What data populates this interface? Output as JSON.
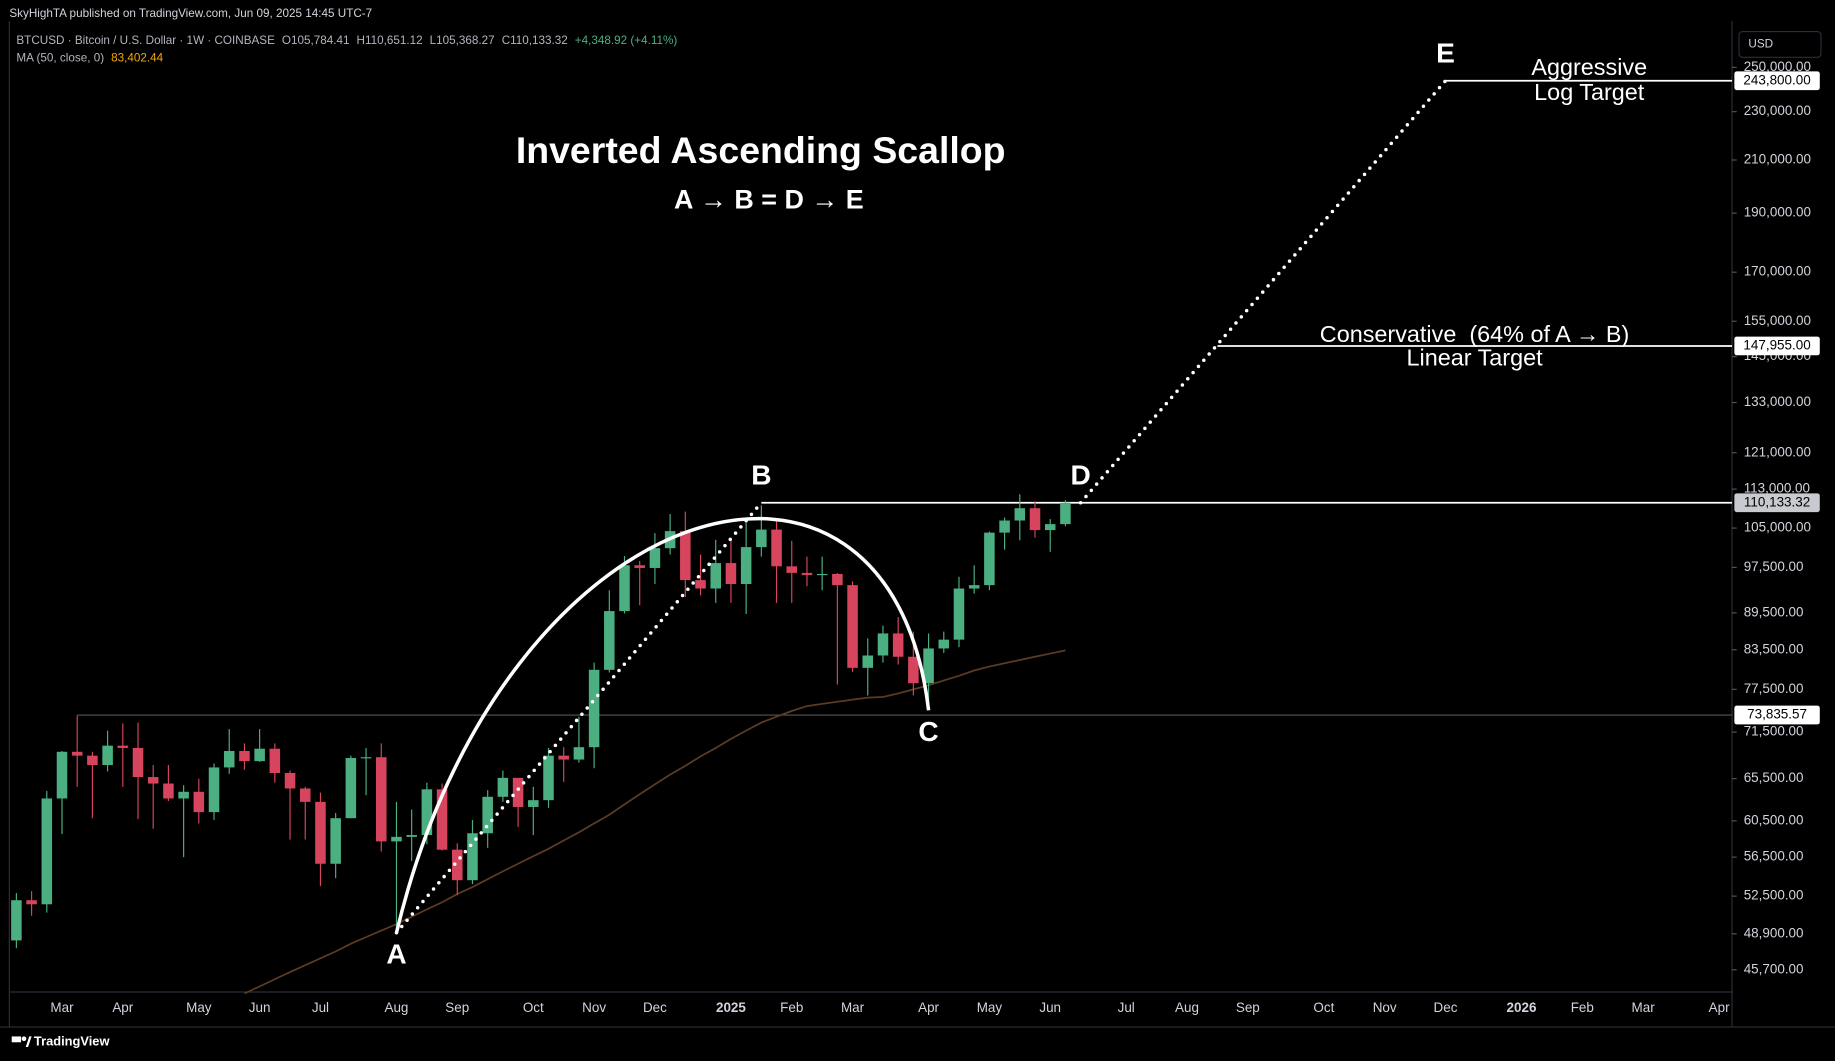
{
  "header": {
    "publisher": "SkyHighTA published on TradingView.com, Jun 09, 2025 14:45 UTC-7",
    "symbol": "BTCUSD · Bitcoin / U.S. Dollar · 1W · COINBASE",
    "open": "O105,784.41",
    "high": "H110,651.12",
    "low": "L105,368.27",
    "close": "C110,133.32",
    "change": "+4,348.92 (+4.11%)",
    "indicator": "MA (50, close, 0)",
    "indicator_value": "83,402.44"
  },
  "currency": "USD",
  "footer": "TradingView",
  "chart_data": {
    "type": "candlestick",
    "title": "Inverted Ascending Scallop",
    "subtitle": "A → B = D → E",
    "categories": [
      null,
      null,
      null,
      "Mar",
      null,
      null,
      null,
      "Apr",
      null,
      null,
      null,
      null,
      "May",
      null,
      null,
      null,
      "Jun",
      null,
      null,
      null,
      "Jul",
      null,
      null,
      null,
      null,
      "Aug",
      null,
      null,
      null,
      "Sep",
      null,
      null,
      null,
      null,
      "Oct",
      null,
      null,
      null,
      "Nov",
      null,
      null,
      null,
      "Dec",
      null,
      null,
      null,
      null,
      "2025",
      null,
      null,
      null,
      "Feb",
      null,
      null,
      null,
      "Mar",
      null,
      null,
      null,
      null,
      "Apr",
      null,
      null,
      null,
      "May",
      null,
      null,
      null,
      "Jun",
      null,
      null,
      null,
      null,
      "Jul",
      null,
      null,
      null,
      "Aug",
      null,
      null,
      null,
      "Sep",
      null,
      null,
      null,
      null,
      "Oct",
      null,
      null,
      null,
      "Nov",
      null,
      null,
      null,
      "Dec",
      null,
      null,
      null,
      null,
      "2026",
      null,
      null,
      null,
      "Feb",
      null,
      null,
      null,
      "Mar",
      null,
      null,
      null,
      null,
      "Apr"
    ],
    "open": [
      48300,
      52100,
      51700,
      63100,
      68900,
      68400,
      67200,
      69700,
      69400,
      65700,
      64900,
      63100,
      63900,
      61500,
      66900,
      69000,
      67700,
      69300,
      66200,
      64300,
      62700,
      55800,
      60800,
      68100,
      68200,
      58200,
      58700,
      58900,
      64200,
      57300,
      54100,
      59100,
      63300,
      65600,
      62100,
      62900,
      68400,
      67900,
      69500,
      80400,
      89800,
      97900,
      97400,
      101100,
      104400,
      95200,
      93700,
      98300,
      94500,
      101300,
      104700,
      97700,
      96500,
      96100,
      96300,
      94300,
      80700,
      82600,
      86100,
      82400,
      78400,
      83700,
      85100,
      93700,
      94300,
      104100,
      106500,
      109000,
      104600,
      105784.41,
      null,
      null,
      null,
      null,
      null,
      null,
      null,
      null,
      null,
      null,
      null,
      null,
      null,
      null,
      null,
      null,
      null,
      null,
      null,
      null,
      null,
      null,
      null,
      null,
      null,
      null,
      null,
      null,
      null,
      null,
      null,
      null,
      null,
      null,
      null,
      null,
      null,
      null,
      null,
      null,
      null,
      null,
      null
    ],
    "high": [
      52800,
      53000,
      64000,
      69000,
      73800,
      68900,
      71700,
      72700,
      72800,
      67200,
      67200,
      64700,
      65500,
      67400,
      71900,
      70000,
      71900,
      70000,
      66500,
      64500,
      63800,
      61400,
      68400,
      69400,
      70000,
      62700,
      61800,
      65000,
      64900,
      58000,
      60600,
      64100,
      66500,
      64900,
      64500,
      69400,
      69500,
      73600,
      81500,
      93400,
      99600,
      98700,
      104000,
      107800,
      108300,
      99900,
      102700,
      102500,
      106400,
      109600,
      106500,
      102500,
      99500,
      99500,
      96500,
      95000,
      85300,
      87400,
      88800,
      86400,
      86100,
      86400,
      95800,
      97900,
      104300,
      107100,
      111900,
      110400,
      106800,
      110651.12,
      null,
      null,
      null,
      null,
      null,
      null,
      null,
      null,
      null,
      null,
      null,
      null,
      null,
      null,
      null,
      null,
      null,
      null,
      null,
      null,
      null,
      null,
      null,
      null,
      null,
      null,
      null,
      null,
      null,
      null,
      null,
      null,
      null,
      null,
      null,
      null,
      null,
      null,
      null,
      null,
      null,
      null,
      null
    ],
    "low": [
      47600,
      50600,
      50900,
      59000,
      64500,
      60800,
      66400,
      64500,
      60700,
      59600,
      62800,
      56500,
      60200,
      60600,
      66100,
      66600,
      67600,
      65000,
      58400,
      58400,
      53500,
      54300,
      60800,
      63500,
      57100,
      49000,
      56100,
      57900,
      57200,
      52600,
      53700,
      57500,
      62700,
      59800,
      58900,
      62000,
      65100,
      67500,
      66800,
      80000,
      89400,
      90800,
      94500,
      99900,
      92200,
      92500,
      91200,
      91200,
      89300,
      99500,
      91200,
      91200,
      94100,
      93400,
      78200,
      80100,
      76600,
      81500,
      81200,
      76600,
      74500,
      83000,
      83900,
      92800,
      93400,
      100800,
      102600,
      103100,
      100400,
      105368.27,
      null,
      null,
      null,
      null,
      null,
      null,
      null,
      null,
      null,
      null,
      null,
      null,
      null,
      null,
      null,
      null,
      null,
      null,
      null,
      null,
      null,
      null,
      null,
      null,
      null,
      null,
      null,
      null,
      null,
      null,
      null,
      null,
      null,
      null,
      null,
      null,
      null,
      null,
      null,
      null,
      null,
      null,
      null
    ],
    "close": [
      52100,
      51700,
      63100,
      68900,
      68400,
      67200,
      69700,
      69400,
      65700,
      64900,
      63100,
      63900,
      61500,
      66900,
      69000,
      67700,
      69300,
      66200,
      64300,
      62700,
      55800,
      60800,
      68100,
      68200,
      58200,
      58700,
      58900,
      64200,
      57300,
      54100,
      59100,
      63300,
      65600,
      62100,
      62900,
      68400,
      67900,
      69500,
      80400,
      89800,
      97900,
      97400,
      101100,
      104400,
      95200,
      93700,
      98300,
      94500,
      101300,
      104700,
      97700,
      96500,
      96100,
      96300,
      94300,
      80700,
      82600,
      86100,
      82400,
      78400,
      83700,
      85100,
      93700,
      94300,
      104100,
      106500,
      109000,
      104600,
      105784.41,
      110133.32,
      null,
      null,
      null,
      null,
      null,
      null,
      null,
      null,
      null,
      null,
      null,
      null,
      null,
      null,
      null,
      null,
      null,
      null,
      null,
      null,
      null,
      null,
      null,
      null,
      null,
      null,
      null,
      null,
      null,
      null,
      null,
      null,
      null,
      null,
      null,
      null,
      null,
      null,
      null,
      null,
      null,
      null,
      null
    ],
    "up_color": "#4caf82",
    "down_color": "#d6455d",
    "ma": {
      "color": "#5c3b24",
      "values": [
        null,
        null,
        null,
        null,
        null,
        null,
        null,
        null,
        null,
        null,
        null,
        null,
        null,
        null,
        null,
        43700,
        44300,
        44900,
        45500,
        46100,
        46700,
        47300,
        48000,
        48600,
        49200,
        49800,
        50500,
        51200,
        51900,
        52700,
        53400,
        54200,
        55000,
        55800,
        56600,
        57400,
        58300,
        59200,
        60200,
        61200,
        62400,
        63600,
        64800,
        66000,
        67100,
        68300,
        69400,
        70600,
        71700,
        72800,
        73600,
        74400,
        75100,
        75400,
        75700,
        76000,
        76300,
        76400,
        76900,
        77500,
        78100,
        78800,
        79500,
        80300,
        80900,
        81400,
        81900,
        82400,
        82900,
        83402.44,
        null,
        null,
        null,
        null,
        null,
        null,
        null,
        null,
        null,
        null,
        null,
        null,
        null,
        null,
        null,
        null,
        null,
        null,
        null,
        null,
        null,
        null,
        null,
        null,
        null,
        null,
        null,
        null,
        null,
        null,
        null,
        null,
        null,
        null,
        null,
        null,
        null,
        null,
        null,
        null,
        null,
        null,
        null
      ]
    },
    "log_scale": true,
    "grid": false,
    "ylim": [
      43830,
      272800
    ],
    "yticks": [
      {
        "value": 45700,
        "label": "45,700.00"
      },
      {
        "value": 48900,
        "label": "48,900.00"
      },
      {
        "value": 52500,
        "label": "52,500.00"
      },
      {
        "value": 56500,
        "label": "56,500.00"
      },
      {
        "value": 60500,
        "label": "60,500.00"
      },
      {
        "value": 65500,
        "label": "65,500.00"
      },
      {
        "value": 71500,
        "label": "71,500.00"
      },
      {
        "value": 77500,
        "label": "77,500.00"
      },
      {
        "value": 83500,
        "label": "83,500.00"
      },
      {
        "value": 89500,
        "label": "89,500.00"
      },
      {
        "value": 97500,
        "label": "97,500.00"
      },
      {
        "value": 105000,
        "label": "105,000.00"
      },
      {
        "value": 113000,
        "label": "113,000.00"
      },
      {
        "value": 121000,
        "label": "121,000.00"
      },
      {
        "value": 133000,
        "label": "133,000.00"
      },
      {
        "value": 145000,
        "label": "145,000.00"
      },
      {
        "value": 155000,
        "label": "155,000.00"
      },
      {
        "value": 170000,
        "label": "170,000.00"
      },
      {
        "value": 190000,
        "label": "190,000.00"
      },
      {
        "value": 210000,
        "label": "210,000.00"
      },
      {
        "value": 230000,
        "label": "230,000.00"
      },
      {
        "value": 250000,
        "label": "250,000.00"
      }
    ],
    "points": [
      {
        "label": "A",
        "x": 25,
        "y": 49000,
        "place": "below"
      },
      {
        "label": "B",
        "x": 49,
        "y": 110133.32,
        "place": "above"
      },
      {
        "label": "C",
        "x": 60,
        "y": 74500,
        "place": "below"
      },
      {
        "label": "D",
        "x": 70,
        "y": 110133.32,
        "place": "above"
      },
      {
        "label": "E",
        "x": 94,
        "y": 243800,
        "place": "above"
      }
    ],
    "levels": [
      {
        "value": 243800,
        "label": "243,800.00",
        "from": 94,
        "style": "target"
      },
      {
        "value": 147955,
        "label": "147,955.00",
        "from": 79,
        "style": "target"
      },
      {
        "value": 110133.32,
        "label": "110,133.32",
        "from": 49,
        "style": "price"
      },
      {
        "value": 73835.57,
        "label": "73,835.57",
        "from": 4,
        "style": "thin"
      }
    ],
    "annotations": {
      "aggressive": [
        "Aggressive",
        "Log Target"
      ],
      "conservative": [
        "Conservative  (64% of A → B)",
        "Linear Target"
      ]
    }
  }
}
